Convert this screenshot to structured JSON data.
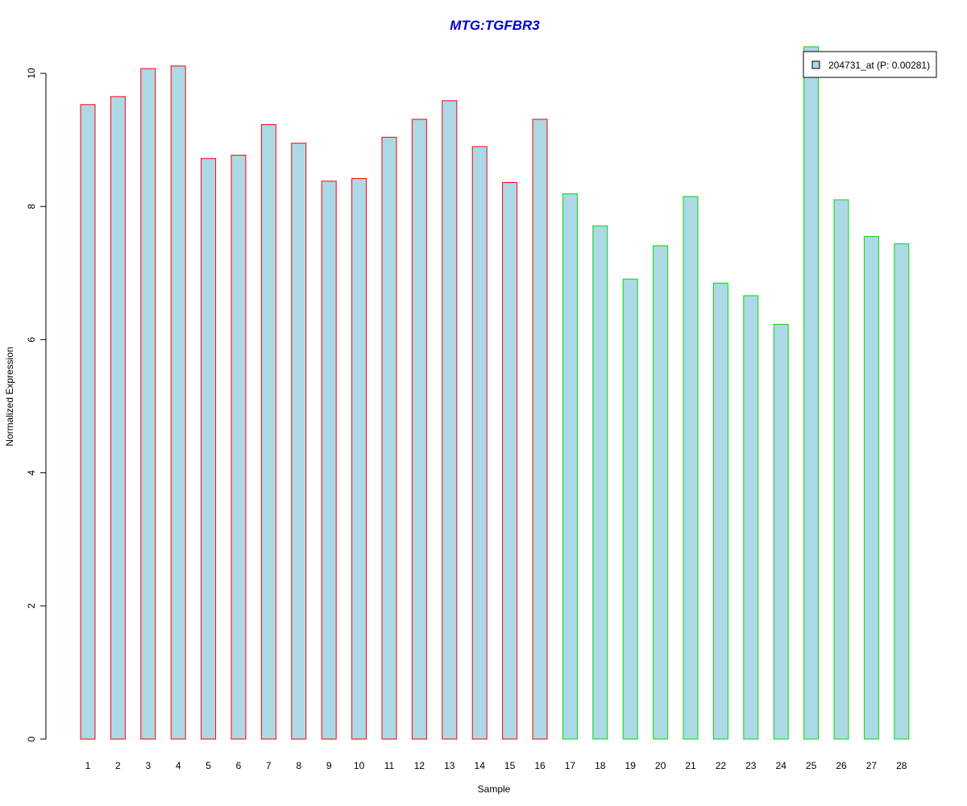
{
  "chart_data": {
    "type": "bar",
    "title": "MTG:TGFBR3",
    "xlabel": "Sample",
    "ylabel": "Normalized Expression",
    "categories": [
      "1",
      "2",
      "3",
      "4",
      "5",
      "6",
      "7",
      "8",
      "9",
      "10",
      "11",
      "12",
      "13",
      "14",
      "15",
      "16",
      "17",
      "18",
      "19",
      "20",
      "21",
      "22",
      "23",
      "24",
      "25",
      "26",
      "27",
      "28"
    ],
    "values": [
      9.53,
      9.65,
      10.07,
      10.11,
      8.72,
      8.77,
      9.23,
      8.95,
      8.38,
      8.42,
      9.04,
      9.31,
      9.59,
      8.9,
      8.36,
      9.31,
      8.19,
      7.71,
      6.91,
      7.41,
      8.15,
      6.85,
      6.66,
      6.23,
      10.4,
      8.1,
      7.55,
      7.44
    ],
    "groups": [
      "red",
      "red",
      "red",
      "red",
      "red",
      "red",
      "red",
      "red",
      "red",
      "red",
      "red",
      "red",
      "red",
      "red",
      "red",
      "red",
      "green",
      "green",
      "green",
      "green",
      "green",
      "green",
      "green",
      "green",
      "green",
      "green",
      "green",
      "green"
    ],
    "ylim": [
      0,
      10.4
    ],
    "yticks": [
      "0",
      "2",
      "4",
      "6",
      "8",
      "10"
    ],
    "legend": {
      "label": "204731_at (P: 0.00281)",
      "placement": "top-right"
    },
    "grid": false
  },
  "colors": {
    "title": "#0000cc",
    "bar_fill": "#add8e6",
    "group_red": "#ff0000",
    "group_green": "#00dd00"
  }
}
